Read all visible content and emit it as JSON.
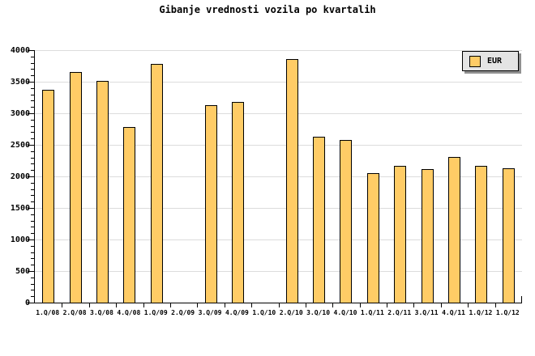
{
  "title": "Gibanje vrednosti vozila po kvartalih",
  "legend": {
    "label": "EUR"
  },
  "colors": {
    "background": "#FFFFFF",
    "bar_fill": "#FFCC66",
    "bar_border": "#000000",
    "grid": "#DCDCDC",
    "axis": "#000000",
    "text": "#000000",
    "legend_bg": "#E4E4E4",
    "legend_shadow": "#909090"
  },
  "chart_data": {
    "type": "bar",
    "title": "Gibanje vrednosti vozila po kvartalih",
    "series_name": "EUR",
    "categories": [
      "1.Q/08",
      "2.Q/08",
      "3.Q/08",
      "4.Q/08",
      "1.Q/09",
      "2.Q/09",
      "3.Q/09",
      "4.Q/09",
      "1.Q/10",
      "2.Q/10",
      "3.Q/10",
      "4.Q/10",
      "1.Q/11",
      "2.Q/11",
      "3.Q/11",
      "4.Q/11",
      "1.Q/12",
      "1.Q/12"
    ],
    "values": [
      3360,
      3640,
      3500,
      2770,
      3770,
      null,
      3110,
      3170,
      null,
      3840,
      2620,
      2560,
      2040,
      2160,
      2100,
      2290,
      2160,
      2110
    ],
    "xlabel": "",
    "ylabel": "",
    "ylim": [
      0,
      4000
    ],
    "y_ticks": [
      0,
      500,
      1000,
      1500,
      2000,
      2500,
      3000,
      3500,
      4000
    ],
    "y_minor_step": 100,
    "grid": "horizontal-major",
    "legend_position": "top-right"
  }
}
